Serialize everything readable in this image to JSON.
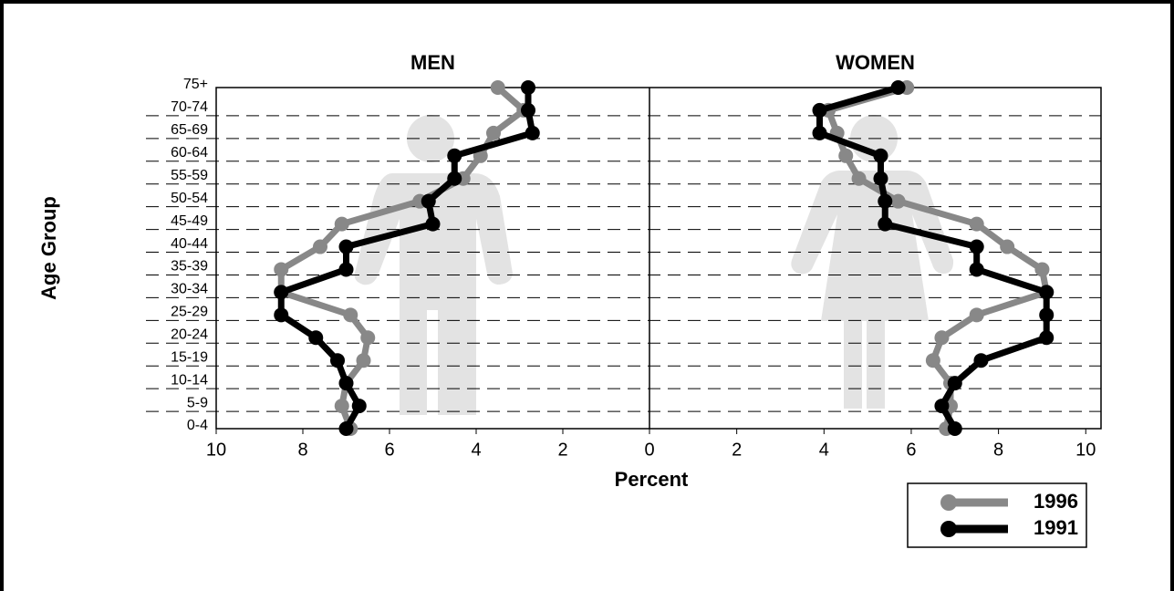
{
  "chart_data": {
    "type": "line",
    "y_label": "Age Group",
    "x_label": "Percent",
    "categories": [
      "0-4",
      "5-9",
      "10-14",
      "15-19",
      "20-24",
      "25-29",
      "30-34",
      "35-39",
      "40-44",
      "45-49",
      "50-54",
      "55-59",
      "60-64",
      "65-69",
      "70-74",
      "75+"
    ],
    "grid": true,
    "legend": "bottom-right",
    "panels": [
      {
        "title": "MEN",
        "xlim": [
          10,
          0
        ],
        "xticks": [
          10,
          8,
          6,
          4,
          2
        ],
        "series": [
          {
            "name": "1996",
            "color": "#888888",
            "values": [
              6.9,
              7.1,
              7.0,
              6.6,
              6.5,
              6.9,
              8.5,
              8.5,
              7.6,
              7.1,
              5.3,
              4.3,
              3.9,
              3.6,
              2.9,
              3.5
            ]
          },
          {
            "name": "1991",
            "color": "#000000",
            "values": [
              7.0,
              6.7,
              7.0,
              7.2,
              7.7,
              8.5,
              8.5,
              7.0,
              7.0,
              5.0,
              5.1,
              4.5,
              4.5,
              2.7,
              2.8,
              2.8
            ]
          }
        ]
      },
      {
        "title": "WOMEN",
        "xlim": [
          0,
          10.35
        ],
        "xticks": [
          0,
          2,
          4,
          6,
          8,
          10
        ],
        "series": [
          {
            "name": "1996",
            "color": "#888888",
            "values": [
              6.8,
              6.9,
              6.9,
              6.5,
              6.7,
              7.5,
              9.1,
              9.0,
              8.2,
              7.5,
              5.7,
              4.8,
              4.5,
              4.3,
              4.1,
              5.9
            ]
          },
          {
            "name": "1991",
            "color": "#000000",
            "values": [
              7.0,
              6.7,
              7.0,
              7.6,
              9.1,
              9.1,
              9.1,
              7.5,
              7.5,
              5.4,
              5.4,
              5.3,
              5.3,
              3.9,
              3.9,
              5.7
            ]
          }
        ]
      }
    ]
  }
}
